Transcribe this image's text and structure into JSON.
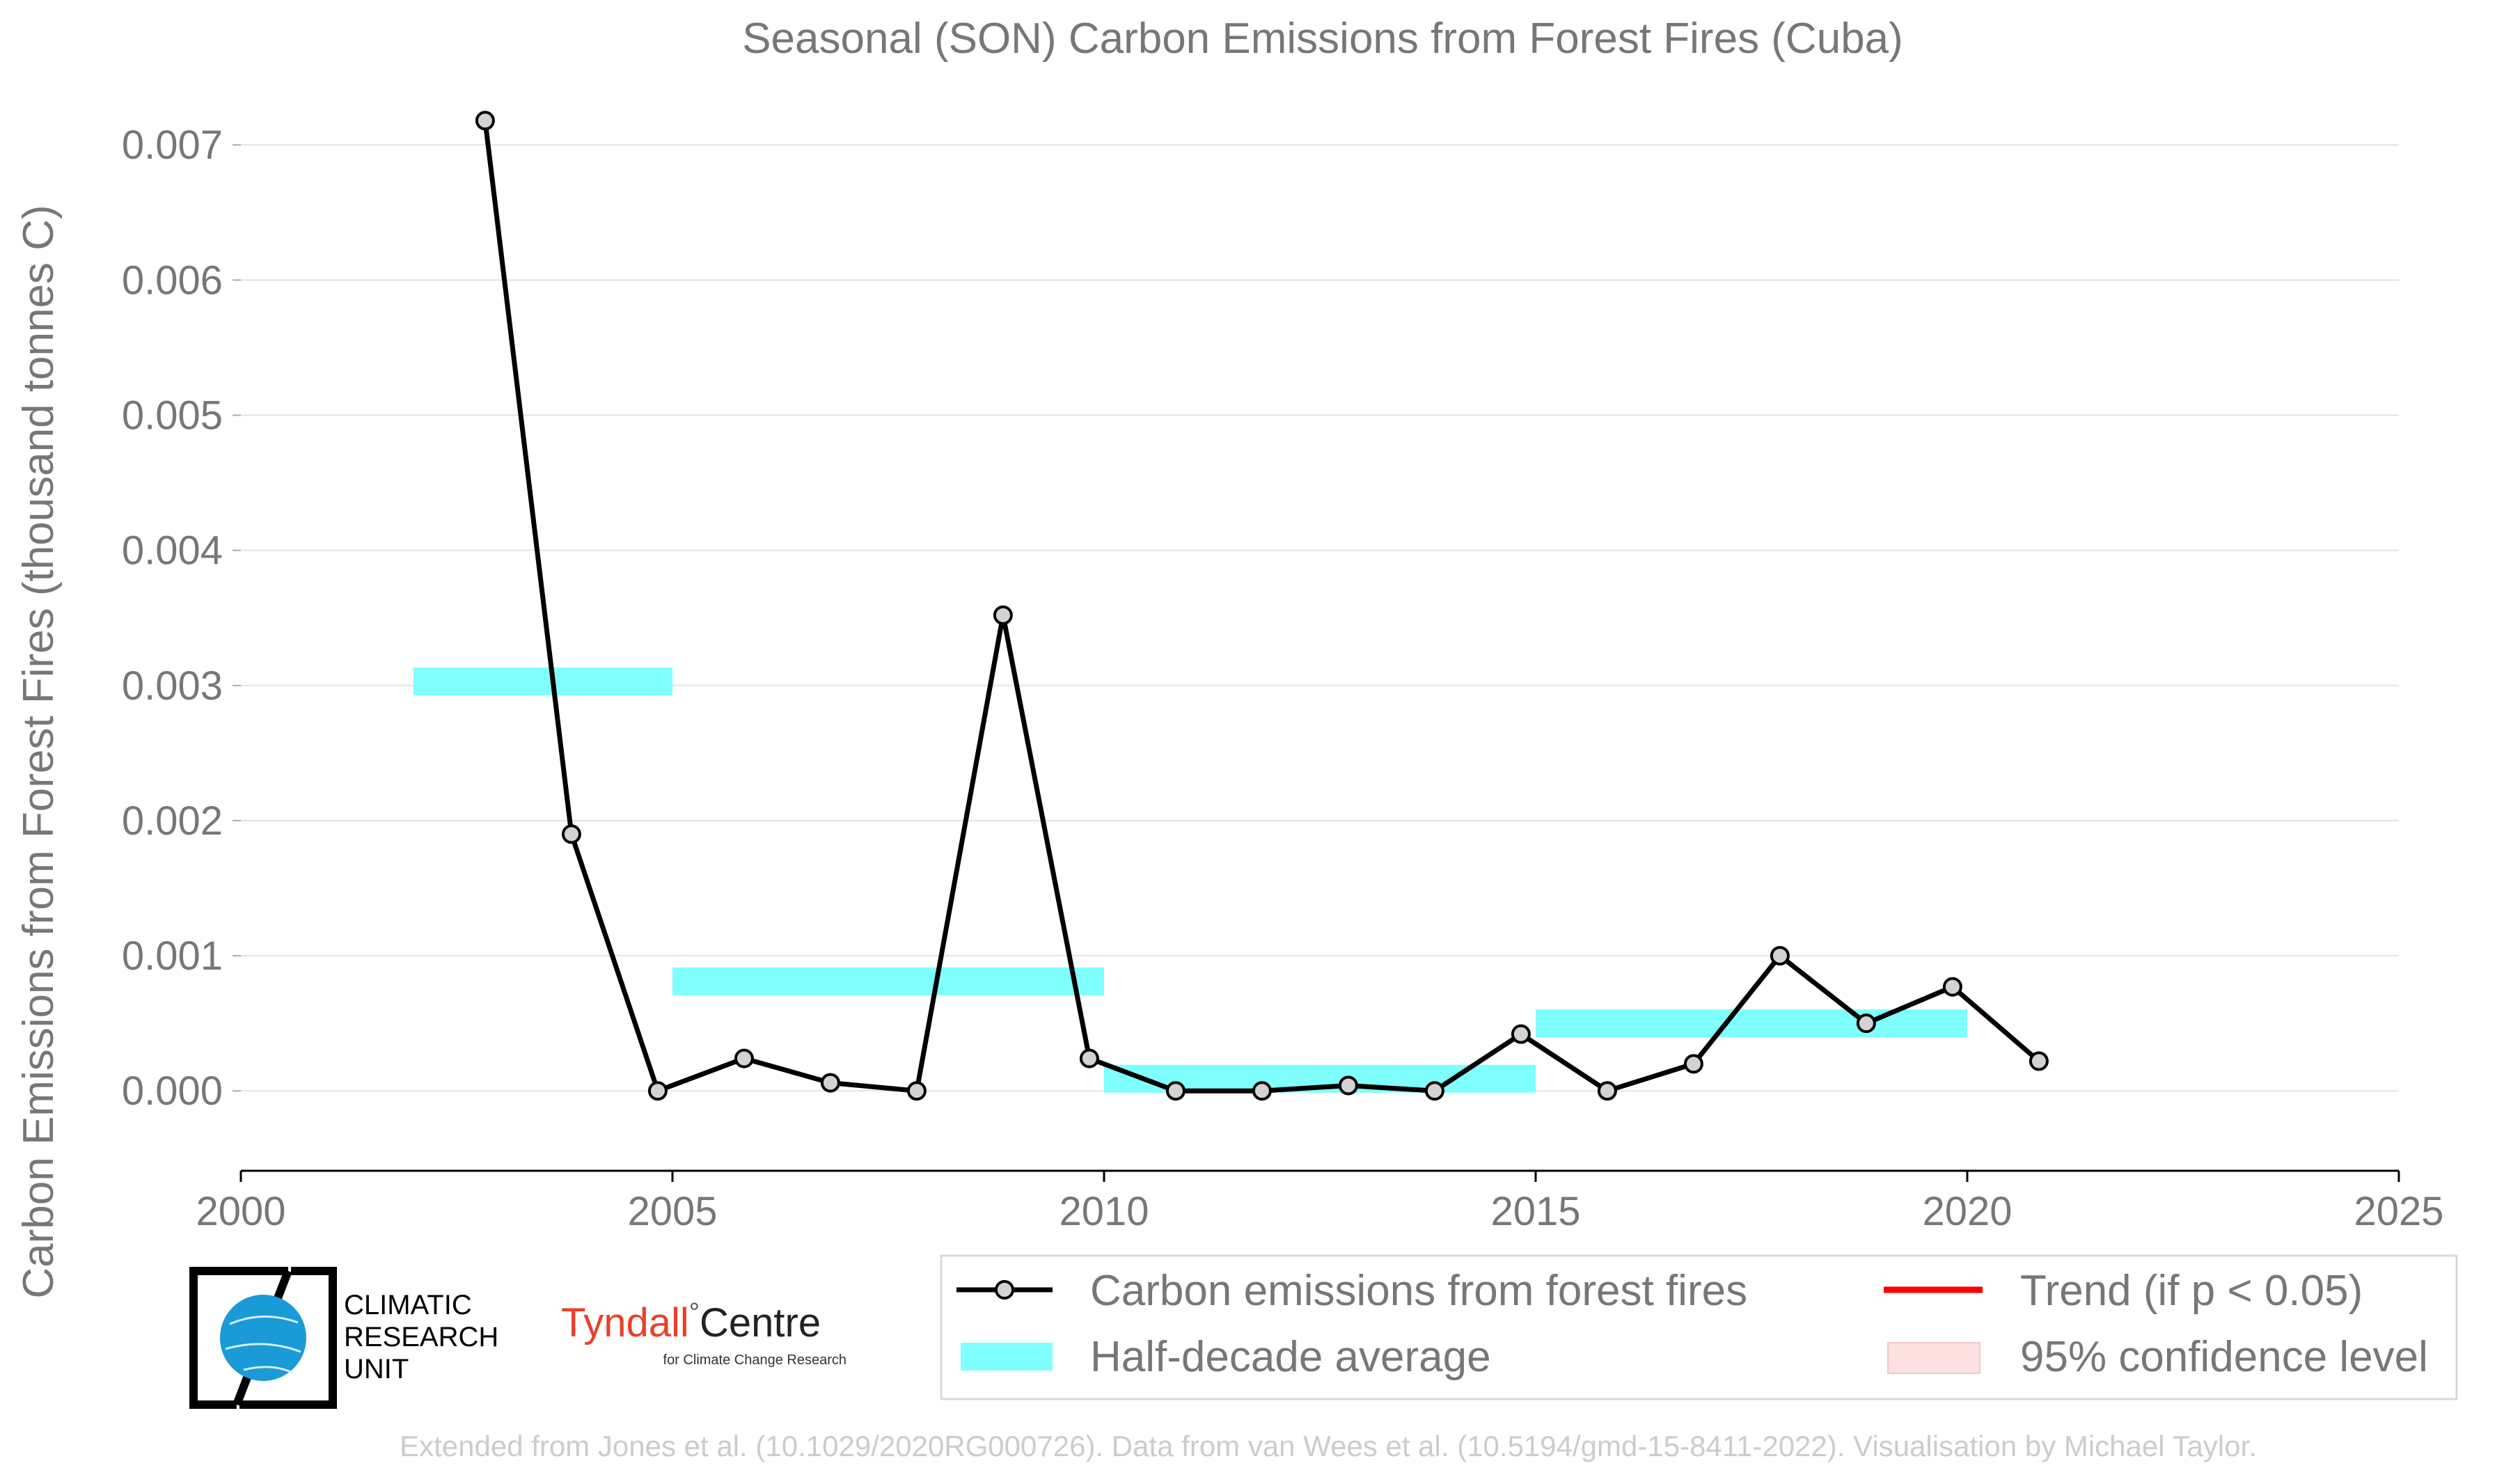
{
  "chart_data": {
    "type": "line",
    "title": "Seasonal (SON) Carbon Emissions from Forest Fires (Cuba)",
    "xlabel": "",
    "ylabel": "Carbon Emissions from Forest Fires (thousand tonnes C)",
    "xlim": [
      2000,
      2025
    ],
    "ylim": [
      -0.00055,
      0.0073
    ],
    "x_ticks": [
      "2000",
      "2005",
      "2010",
      "2015",
      "2020",
      "2025"
    ],
    "x_tick_values": [
      2000,
      2005,
      2010,
      2015,
      2020,
      2025
    ],
    "y_ticks": [
      "0.000",
      "0.001",
      "0.002",
      "0.003",
      "0.004",
      "0.005",
      "0.006",
      "0.007"
    ],
    "y_tick_values": [
      0,
      0.001,
      0.002,
      0.003,
      0.004,
      0.005,
      0.006,
      0.007
    ],
    "grid": "horizontal",
    "series": [
      {
        "name": "Carbon emissions from forest fires",
        "color": "#000000",
        "marker_fill": "#d3d3d3",
        "x": [
          2002.83,
          2003.83,
          2004.83,
          2005.83,
          2006.83,
          2007.83,
          2008.83,
          2009.83,
          2010.83,
          2011.83,
          2012.83,
          2013.83,
          2014.83,
          2015.83,
          2016.83,
          2017.83,
          2018.83,
          2019.83,
          2020.83
        ],
        "y": [
          0.00718,
          0.0019,
          0.0,
          0.00024,
          6e-05,
          0.0,
          0.00352,
          0.00024,
          0.0,
          0.0,
          4e-05,
          0.0,
          0.00042,
          0.0,
          0.0002,
          0.001,
          0.0005,
          0.00077,
          0.00022
        ]
      }
    ],
    "half_decade_averages": {
      "name": "Half-decade average",
      "color": "#80ffff",
      "segments": [
        {
          "x0": 2002,
          "x1": 2005,
          "y": 0.00303
        },
        {
          "x0": 2005,
          "x1": 2010,
          "y": 0.00081
        },
        {
          "x0": 2010,
          "x1": 2015,
          "y": 9e-05
        },
        {
          "x0": 2015,
          "x1": 2020,
          "y": 0.0005
        }
      ]
    },
    "legend": {
      "placement": "bottom-right",
      "entries": [
        {
          "label": "Carbon emissions from forest fires",
          "kind": "line-marker",
          "color": "#000000"
        },
        {
          "label": "Trend (if p < 0.05)",
          "kind": "line",
          "color": "#ff0000"
        },
        {
          "label": "Half-decade average",
          "kind": "band",
          "color": "#80ffff"
        },
        {
          "label": "95% confidence level",
          "kind": "band",
          "color": "#fde0e0"
        }
      ]
    }
  },
  "logos": {
    "cru_lines": [
      "CLIMATIC",
      "RESEARCH",
      "UNIT"
    ],
    "tyndall_main": "Tyndall",
    "tyndall_degree": "°",
    "tyndall_centre": "Centre",
    "tyndall_sub": "for Climate Change Research"
  },
  "credit": "Extended from Jones et al. (10.1029/2020RG000726). Data from van Wees et al. (10.5194/gmd-15-8411-2022). Visualisation by Michael Taylor."
}
